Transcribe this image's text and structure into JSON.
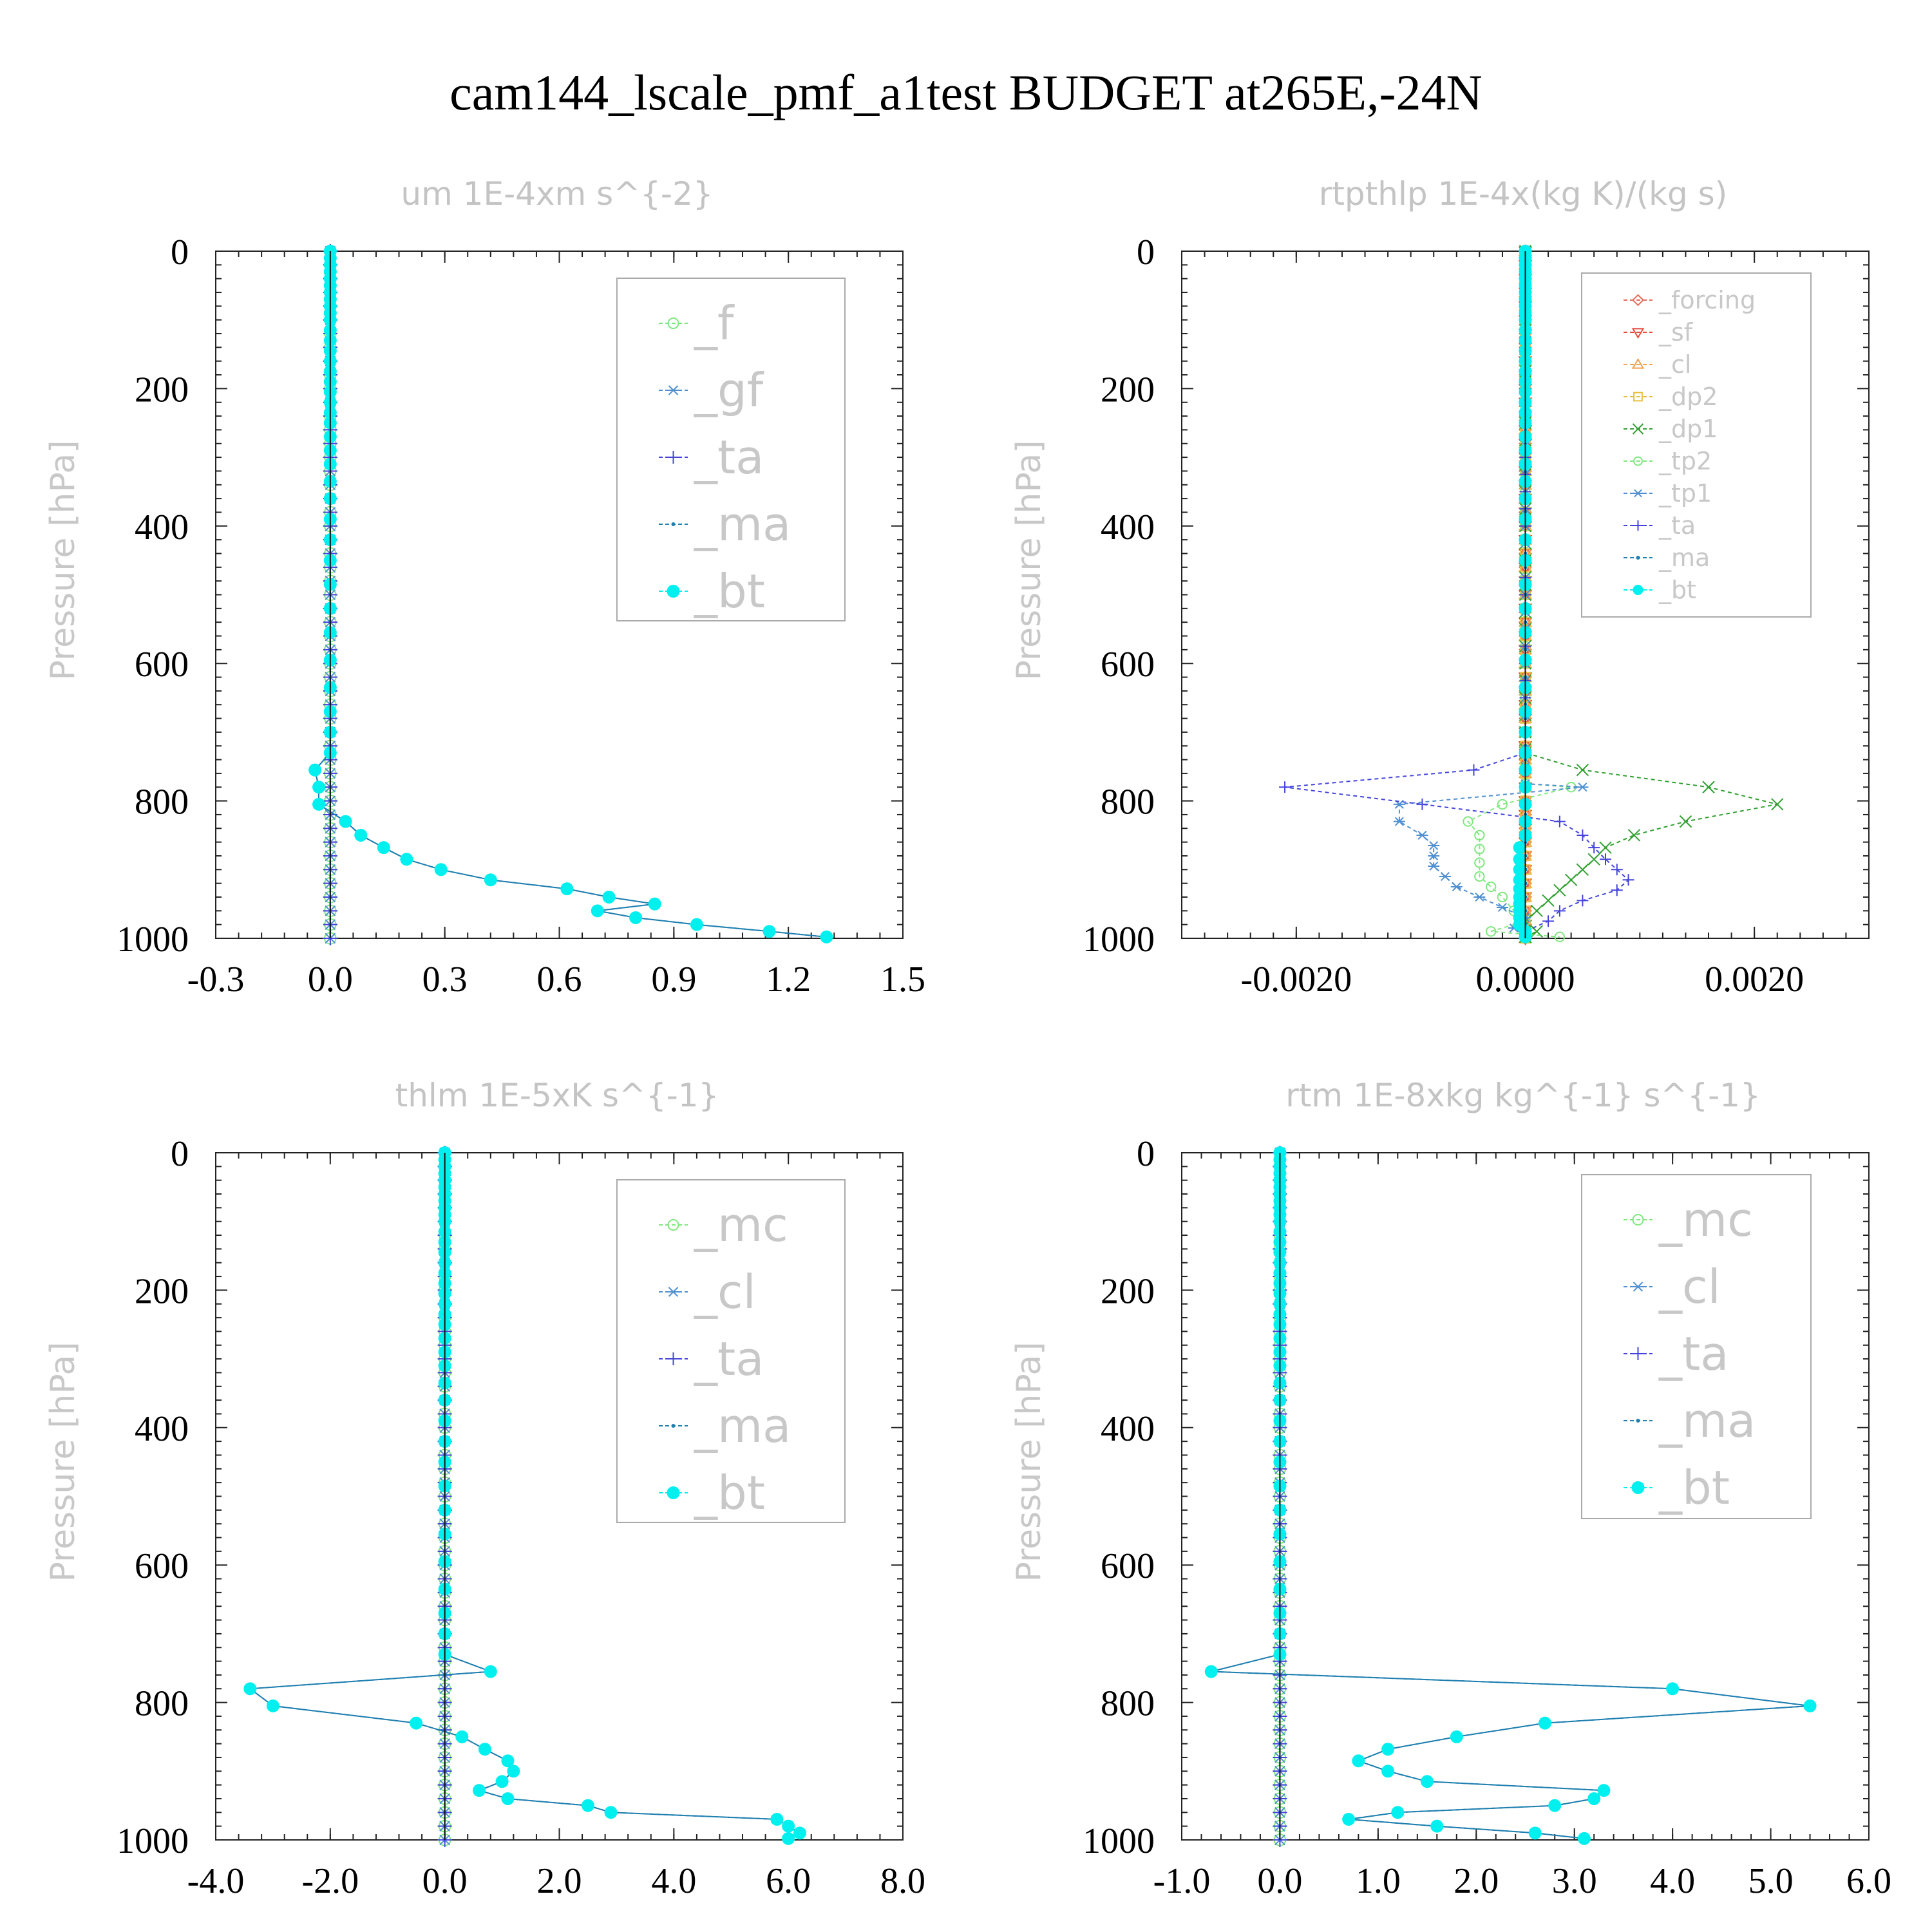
{
  "figure_title": "cam144_lscale_pmf_a1test  BUDGET at265E,-24N",
  "chart_data": [
    {
      "type": "line",
      "title": "um   1E-4xm s^{-2}",
      "ylabel": "Pressure [hPa]",
      "xlim": [
        -0.3,
        1.5
      ],
      "ylim": [
        1000,
        0
      ],
      "xticks": [
        "-0.3",
        "0.0",
        "0.3",
        "0.6",
        "0.9",
        "1.2",
        "1.5"
      ],
      "yticks": [
        "0",
        "200",
        "400",
        "600",
        "800",
        "1000"
      ],
      "legend_position": "top-right",
      "series": [
        {
          "name": "_f",
          "color": "#7ee87e",
          "marker": "circle-open",
          "shape": "zero"
        },
        {
          "name": "_gf",
          "color": "#4f8fd0",
          "marker": "asterisk",
          "shape": "zero"
        },
        {
          "name": "_ta",
          "color": "#4444dd",
          "marker": "plus",
          "shape": "zero"
        },
        {
          "name": "_ma",
          "color": "#1e7fb0",
          "marker": "dot",
          "shape": "bt"
        },
        {
          "name": "_bt",
          "color": "#00f0f0",
          "marker": "filled-circle",
          "shape": "bt"
        }
      ],
      "bt_profile": {
        "p": [
          0,
          10,
          20,
          30,
          40,
          50,
          60,
          70,
          80,
          90,
          100,
          115,
          130,
          145,
          160,
          175,
          190,
          205,
          220,
          235,
          250,
          270,
          290,
          310,
          335,
          360,
          390,
          420,
          450,
          485,
          520,
          555,
          595,
          635,
          670,
          700,
          730,
          755,
          780,
          805,
          830,
          850,
          868,
          885,
          900,
          915,
          928,
          940,
          950,
          960,
          970,
          980,
          990,
          998
        ],
        "x": [
          0,
          0,
          0,
          0,
          0,
          0,
          0,
          0,
          0,
          0,
          0,
          0,
          0,
          0,
          0,
          0,
          0,
          0,
          0,
          0,
          0,
          0,
          0,
          0,
          0,
          0,
          0,
          0,
          0,
          0,
          0,
          0,
          0,
          0,
          0,
          0,
          0,
          -0.04,
          -0.03,
          -0.03,
          0.04,
          0.08,
          0.14,
          0.2,
          0.29,
          0.42,
          0.62,
          0.73,
          0.85,
          0.7,
          0.8,
          0.96,
          1.15,
          1.3
        ]
      }
    },
    {
      "type": "line",
      "title": "rtpthlp   1E-4x(kg K)/(kg s)",
      "ylabel": "Pressure [hPa]",
      "xlim": [
        -0.003,
        0.003
      ],
      "ylim": [
        1000,
        0
      ],
      "xticks": [
        "-0.0020",
        "0.0000",
        "0.0020"
      ],
      "xtick_values": [
        -0.002,
        0,
        0.002
      ],
      "yticks": [
        "0",
        "200",
        "400",
        "600",
        "800",
        "1000"
      ],
      "legend_position": "top-right",
      "series": [
        {
          "name": "_forcing",
          "color": "#e86a5a",
          "marker": "diamond-open",
          "shape": "zero"
        },
        {
          "name": "_sf",
          "color": "#e84a3a",
          "marker": "triangle-down",
          "shape": "zero"
        },
        {
          "name": "_cl",
          "color": "#f0a050",
          "marker": "triangle-up",
          "shape": "zero"
        },
        {
          "name": "_dp2",
          "color": "#e8c040",
          "marker": "square-open",
          "shape": "zero"
        },
        {
          "name": "_dp1",
          "color": "#30a030",
          "marker": "x",
          "shape": "dp1"
        },
        {
          "name": "_tp2",
          "color": "#7ee87e",
          "marker": "circle-open",
          "shape": "tp2"
        },
        {
          "name": "_tp1",
          "color": "#4f8fd0",
          "marker": "asterisk",
          "shape": "tp1"
        },
        {
          "name": "_ta",
          "color": "#4444dd",
          "marker": "plus",
          "shape": "ta"
        },
        {
          "name": "_ma",
          "color": "#1e7fb0",
          "marker": "dot",
          "shape": "zero"
        },
        {
          "name": "_bt",
          "color": "#00f0f0",
          "marker": "filled-circle",
          "shape": "bt"
        }
      ],
      "profiles": {
        "dp1": {
          "p": [
            730,
            755,
            780,
            805,
            830,
            850,
            868,
            885,
            900,
            915,
            930,
            945,
            960,
            975,
            990,
            998
          ],
          "x": [
            0,
            0.0005,
            0.0016,
            0.0022,
            0.0014,
            0.00095,
            0.0007,
            0.0006,
            0.0005,
            0.0004,
            0.0003,
            0.0002,
            0.0001,
            0,
            0.0001,
            0
          ]
        },
        "tp2": {
          "p": [
            780,
            805,
            830,
            850,
            870,
            890,
            910,
            925,
            940,
            960,
            975,
            990,
            998
          ],
          "x": [
            0.0004,
            -0.0002,
            -0.0005,
            -0.0004,
            -0.0004,
            -0.0004,
            -0.0004,
            -0.0003,
            -0.0002,
            -0.0001,
            0,
            -0.0003,
            0.0003
          ]
        },
        "tp1": {
          "p": [
            780,
            805,
            830,
            850,
            865,
            880,
            895,
            910,
            925,
            940,
            955,
            970,
            985,
            998
          ],
          "x": [
            0.0005,
            -0.0011,
            -0.0011,
            -0.0009,
            -0.0008,
            -0.0008,
            -0.0008,
            -0.0007,
            -0.0006,
            -0.0004,
            -0.0002,
            0,
            -0.0001,
            0
          ]
        },
        "ta": {
          "p": [
            730,
            755,
            780,
            805,
            830,
            850,
            868,
            885,
            900,
            915,
            930,
            945,
            960,
            975,
            990,
            998
          ],
          "x": [
            0,
            -0.00045,
            -0.0021,
            -0.0009,
            0.0003,
            0.0005,
            0.0006,
            0.0007,
            0.0008,
            0.0009,
            0.0008,
            0.0005,
            0.0003,
            0.0002,
            0,
            0
          ]
        },
        "bt": {
          "p": [
            0,
            10,
            20,
            30,
            40,
            50,
            60,
            70,
            80,
            90,
            100,
            115,
            130,
            145,
            160,
            175,
            190,
            205,
            220,
            235,
            250,
            270,
            290,
            310,
            335,
            360,
            390,
            420,
            450,
            485,
            520,
            555,
            595,
            635,
            670,
            700,
            730,
            755,
            780,
            805,
            830,
            850,
            868,
            885,
            900,
            915,
            928,
            940,
            950,
            960,
            970,
            980,
            990,
            998
          ],
          "x": [
            0,
            0,
            0,
            0,
            0,
            0,
            0,
            0,
            0,
            0,
            0,
            0,
            0,
            0,
            0,
            0,
            0,
            0,
            0,
            0,
            0,
            0,
            0,
            0,
            0,
            0,
            0,
            0,
            0,
            0,
            0,
            0,
            0,
            0,
            0,
            0,
            0,
            0,
            0,
            0,
            0,
            0,
            -5e-05,
            -5e-05,
            -5e-05,
            -5e-05,
            -5e-05,
            -5e-05,
            -5e-05,
            -5e-05,
            -5e-05,
            -5e-05,
            0,
            0
          ]
        }
      }
    },
    {
      "type": "line",
      "title": "thlm   1E-5xK s^{-1}",
      "ylabel": "Pressure [hPa]",
      "xlim": [
        -4.0,
        8.0
      ],
      "ylim": [
        1000,
        0
      ],
      "xticks": [
        "-4.0",
        "-2.0",
        "0.0",
        "2.0",
        "4.0",
        "6.0",
        "8.0"
      ],
      "yticks": [
        "0",
        "200",
        "400",
        "600",
        "800",
        "1000"
      ],
      "legend_position": "top-right",
      "series": [
        {
          "name": "_mc",
          "color": "#7ee87e",
          "marker": "circle-open",
          "shape": "zero"
        },
        {
          "name": "_cl",
          "color": "#4f8fd0",
          "marker": "asterisk",
          "shape": "zero"
        },
        {
          "name": "_ta",
          "color": "#4444dd",
          "marker": "plus",
          "shape": "zero"
        },
        {
          "name": "_ma",
          "color": "#1e7fb0",
          "marker": "dot",
          "shape": "bt"
        },
        {
          "name": "_bt",
          "color": "#00f0f0",
          "marker": "filled-circle",
          "shape": "bt"
        }
      ],
      "bt_profile": {
        "p": [
          0,
          10,
          20,
          30,
          40,
          50,
          60,
          70,
          80,
          90,
          100,
          115,
          130,
          145,
          160,
          175,
          190,
          205,
          220,
          235,
          250,
          270,
          290,
          310,
          335,
          360,
          390,
          420,
          450,
          485,
          520,
          555,
          595,
          635,
          670,
          700,
          730,
          755,
          780,
          805,
          830,
          850,
          868,
          885,
          900,
          915,
          928,
          940,
          950,
          960,
          970,
          980,
          990,
          998
        ],
        "x": [
          0,
          0,
          0,
          0,
          0,
          0,
          0,
          0,
          0,
          0,
          0,
          0,
          0,
          0,
          0,
          0,
          0,
          0,
          0,
          0,
          0,
          0,
          0,
          0,
          0,
          0,
          0,
          0,
          0,
          0,
          0,
          0,
          0,
          0,
          0,
          0,
          0,
          0.8,
          -3.4,
          -3.0,
          -0.5,
          0.3,
          0.7,
          1.1,
          1.2,
          1.0,
          0.6,
          1.1,
          2.5,
          2.9,
          5.8,
          6.0,
          6.2,
          6.0
        ]
      }
    },
    {
      "type": "line",
      "title": "rtm   1E-8xkg kg^{-1} s^{-1}",
      "ylabel": "Pressure [hPa]",
      "xlim": [
        -1.0,
        6.0
      ],
      "ylim": [
        1000,
        0
      ],
      "xticks": [
        "-1.0",
        "0.0",
        "1.0",
        "2.0",
        "3.0",
        "4.0",
        "5.0",
        "6.0"
      ],
      "yticks": [
        "0",
        "200",
        "400",
        "600",
        "800",
        "1000"
      ],
      "legend_position": "top-right",
      "series": [
        {
          "name": "_mc",
          "color": "#7ee87e",
          "marker": "circle-open",
          "shape": "zero"
        },
        {
          "name": "_cl",
          "color": "#4f8fd0",
          "marker": "asterisk",
          "shape": "zero"
        },
        {
          "name": "_ta",
          "color": "#4444dd",
          "marker": "plus",
          "shape": "zero"
        },
        {
          "name": "_ma",
          "color": "#1e7fb0",
          "marker": "dot",
          "shape": "bt"
        },
        {
          "name": "_bt",
          "color": "#00f0f0",
          "marker": "filled-circle",
          "shape": "bt"
        }
      ],
      "bt_profile": {
        "p": [
          0,
          10,
          20,
          30,
          40,
          50,
          60,
          70,
          80,
          90,
          100,
          115,
          130,
          145,
          160,
          175,
          190,
          205,
          220,
          235,
          250,
          270,
          290,
          310,
          335,
          360,
          390,
          420,
          450,
          485,
          520,
          555,
          595,
          635,
          670,
          700,
          730,
          755,
          780,
          805,
          830,
          850,
          868,
          885,
          900,
          915,
          928,
          940,
          950,
          960,
          970,
          980,
          990,
          998
        ],
        "x": [
          0,
          0,
          0,
          0,
          0,
          0,
          0,
          0,
          0,
          0,
          0,
          0,
          0,
          0,
          0,
          0,
          0,
          0,
          0,
          0,
          0,
          0,
          0,
          0,
          0,
          0,
          0,
          0,
          0,
          0,
          0,
          0,
          0,
          0,
          0,
          0,
          0,
          -0.7,
          4.0,
          5.4,
          2.7,
          1.8,
          1.1,
          0.8,
          1.1,
          1.5,
          3.3,
          3.2,
          2.8,
          1.2,
          0.7,
          1.6,
          2.6,
          3.1
        ]
      }
    }
  ]
}
